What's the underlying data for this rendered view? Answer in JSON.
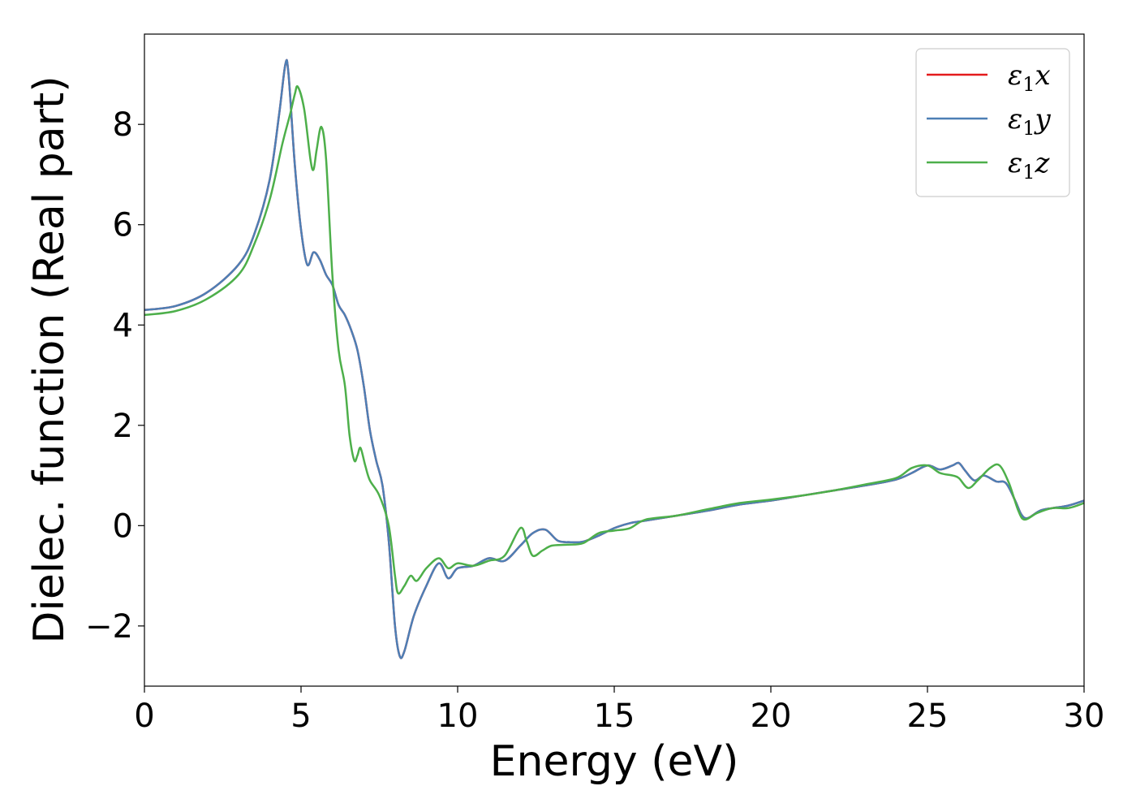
{
  "chart_data": {
    "type": "line",
    "title": "",
    "xlabel": "Energy (eV)",
    "ylabel": "Dielec. function (Real part)",
    "xlim": [
      0,
      30
    ],
    "ylim": [
      -3.2,
      9.8
    ],
    "xticks": [
      0,
      5,
      10,
      15,
      20,
      25,
      30
    ],
    "yticks": [
      -2,
      0,
      2,
      4,
      6,
      8
    ],
    "xtick_labels": [
      "0",
      "5",
      "10",
      "15",
      "20",
      "25",
      "30"
    ],
    "ytick_labels": [
      "−2",
      "0",
      "2",
      "4",
      "6",
      "8"
    ],
    "grid": false,
    "legend_position": "top-right",
    "series": [
      {
        "name": "ε1x",
        "legend_main": "ε",
        "legend_sub": "1",
        "legend_suffix": "x",
        "color": "#e41a1c",
        "points": [
          [
            0,
            4.3
          ],
          [
            1,
            4.38
          ],
          [
            2,
            4.65
          ],
          [
            3,
            5.2
          ],
          [
            3.5,
            5.8
          ],
          [
            4,
            6.9
          ],
          [
            4.3,
            8.2
          ],
          [
            4.5,
            9.2
          ],
          [
            4.6,
            9.0
          ],
          [
            4.8,
            7.2
          ],
          [
            5.0,
            5.9
          ],
          [
            5.2,
            5.2
          ],
          [
            5.4,
            5.45
          ],
          [
            5.6,
            5.3
          ],
          [
            5.8,
            5.0
          ],
          [
            6.0,
            4.8
          ],
          [
            6.2,
            4.4
          ],
          [
            6.4,
            4.2
          ],
          [
            6.6,
            3.9
          ],
          [
            6.8,
            3.5
          ],
          [
            7.0,
            2.8
          ],
          [
            7.2,
            1.9
          ],
          [
            7.4,
            1.3
          ],
          [
            7.6,
            0.8
          ],
          [
            7.8,
            -0.3
          ],
          [
            8.0,
            -2.0
          ],
          [
            8.15,
            -2.6
          ],
          [
            8.3,
            -2.5
          ],
          [
            8.6,
            -1.8
          ],
          [
            9.0,
            -1.2
          ],
          [
            9.4,
            -0.75
          ],
          [
            9.7,
            -1.05
          ],
          [
            10.0,
            -0.85
          ],
          [
            10.5,
            -0.8
          ],
          [
            11.0,
            -0.65
          ],
          [
            11.5,
            -0.7
          ],
          [
            12.0,
            -0.4
          ],
          [
            12.4,
            -0.15
          ],
          [
            12.8,
            -0.08
          ],
          [
            13.2,
            -0.3
          ],
          [
            13.6,
            -0.33
          ],
          [
            14.0,
            -0.32
          ],
          [
            14.5,
            -0.2
          ],
          [
            15.0,
            -0.05
          ],
          [
            15.5,
            0.05
          ],
          [
            16.0,
            0.1
          ],
          [
            17.0,
            0.2
          ],
          [
            18.0,
            0.3
          ],
          [
            19.0,
            0.42
          ],
          [
            20.0,
            0.5
          ],
          [
            21.0,
            0.6
          ],
          [
            22.0,
            0.7
          ],
          [
            23.0,
            0.8
          ],
          [
            24.0,
            0.92
          ],
          [
            24.5,
            1.05
          ],
          [
            25.0,
            1.2
          ],
          [
            25.4,
            1.12
          ],
          [
            25.8,
            1.2
          ],
          [
            26.0,
            1.25
          ],
          [
            26.2,
            1.1
          ],
          [
            26.5,
            0.9
          ],
          [
            26.8,
            1.0
          ],
          [
            27.2,
            0.88
          ],
          [
            27.5,
            0.85
          ],
          [
            27.8,
            0.5
          ],
          [
            28.0,
            0.22
          ],
          [
            28.2,
            0.15
          ],
          [
            28.6,
            0.3
          ],
          [
            29.0,
            0.35
          ],
          [
            29.5,
            0.4
          ],
          [
            30.0,
            0.5
          ]
        ]
      },
      {
        "name": "ε1y",
        "legend_main": "ε",
        "legend_sub": "1",
        "legend_suffix": "y",
        "color": "#4d7fb5",
        "points": [
          [
            0,
            4.3
          ],
          [
            1,
            4.38
          ],
          [
            2,
            4.65
          ],
          [
            3,
            5.2
          ],
          [
            3.5,
            5.8
          ],
          [
            4,
            6.9
          ],
          [
            4.3,
            8.2
          ],
          [
            4.5,
            9.2
          ],
          [
            4.6,
            9.0
          ],
          [
            4.8,
            7.2
          ],
          [
            5.0,
            5.9
          ],
          [
            5.2,
            5.2
          ],
          [
            5.4,
            5.45
          ],
          [
            5.6,
            5.3
          ],
          [
            5.8,
            5.0
          ],
          [
            6.0,
            4.8
          ],
          [
            6.2,
            4.4
          ],
          [
            6.4,
            4.2
          ],
          [
            6.6,
            3.9
          ],
          [
            6.8,
            3.5
          ],
          [
            7.0,
            2.8
          ],
          [
            7.2,
            1.9
          ],
          [
            7.4,
            1.3
          ],
          [
            7.6,
            0.8
          ],
          [
            7.8,
            -0.3
          ],
          [
            8.0,
            -2.0
          ],
          [
            8.15,
            -2.6
          ],
          [
            8.3,
            -2.5
          ],
          [
            8.6,
            -1.8
          ],
          [
            9.0,
            -1.2
          ],
          [
            9.4,
            -0.75
          ],
          [
            9.7,
            -1.05
          ],
          [
            10.0,
            -0.85
          ],
          [
            10.5,
            -0.8
          ],
          [
            11.0,
            -0.65
          ],
          [
            11.5,
            -0.7
          ],
          [
            12.0,
            -0.4
          ],
          [
            12.4,
            -0.15
          ],
          [
            12.8,
            -0.08
          ],
          [
            13.2,
            -0.3
          ],
          [
            13.6,
            -0.33
          ],
          [
            14.0,
            -0.32
          ],
          [
            14.5,
            -0.2
          ],
          [
            15.0,
            -0.05
          ],
          [
            15.5,
            0.05
          ],
          [
            16.0,
            0.1
          ],
          [
            17.0,
            0.2
          ],
          [
            18.0,
            0.3
          ],
          [
            19.0,
            0.42
          ],
          [
            20.0,
            0.5
          ],
          [
            21.0,
            0.6
          ],
          [
            22.0,
            0.7
          ],
          [
            23.0,
            0.8
          ],
          [
            24.0,
            0.92
          ],
          [
            24.5,
            1.05
          ],
          [
            25.0,
            1.2
          ],
          [
            25.4,
            1.12
          ],
          [
            25.8,
            1.2
          ],
          [
            26.0,
            1.25
          ],
          [
            26.2,
            1.1
          ],
          [
            26.5,
            0.9
          ],
          [
            26.8,
            1.0
          ],
          [
            27.2,
            0.88
          ],
          [
            27.5,
            0.85
          ],
          [
            27.8,
            0.5
          ],
          [
            28.0,
            0.22
          ],
          [
            28.2,
            0.15
          ],
          [
            28.6,
            0.3
          ],
          [
            29.0,
            0.35
          ],
          [
            29.5,
            0.4
          ],
          [
            30.0,
            0.5
          ]
        ]
      },
      {
        "name": "ε1z",
        "legend_main": "ε",
        "legend_sub": "1",
        "legend_suffix": "z",
        "color": "#4daf4a",
        "points": [
          [
            0,
            4.2
          ],
          [
            1,
            4.28
          ],
          [
            2,
            4.52
          ],
          [
            3,
            5.0
          ],
          [
            3.5,
            5.6
          ],
          [
            4,
            6.5
          ],
          [
            4.4,
            7.6
          ],
          [
            4.65,
            8.2
          ],
          [
            4.8,
            8.6
          ],
          [
            4.9,
            8.75
          ],
          [
            5.1,
            8.3
          ],
          [
            5.3,
            7.3
          ],
          [
            5.4,
            7.1
          ],
          [
            5.5,
            7.5
          ],
          [
            5.65,
            7.95
          ],
          [
            5.8,
            7.3
          ],
          [
            6.0,
            5.0
          ],
          [
            6.2,
            3.5
          ],
          [
            6.4,
            2.8
          ],
          [
            6.55,
            1.8
          ],
          [
            6.7,
            1.3
          ],
          [
            6.8,
            1.4
          ],
          [
            6.9,
            1.55
          ],
          [
            7.05,
            1.2
          ],
          [
            7.2,
            0.9
          ],
          [
            7.5,
            0.6
          ],
          [
            7.8,
            0.0
          ],
          [
            8.0,
            -1.0
          ],
          [
            8.1,
            -1.35
          ],
          [
            8.3,
            -1.2
          ],
          [
            8.5,
            -1.0
          ],
          [
            8.7,
            -1.1
          ],
          [
            9.0,
            -0.85
          ],
          [
            9.4,
            -0.65
          ],
          [
            9.7,
            -0.85
          ],
          [
            10.0,
            -0.75
          ],
          [
            10.5,
            -0.8
          ],
          [
            11.0,
            -0.7
          ],
          [
            11.5,
            -0.6
          ],
          [
            12.0,
            -0.05
          ],
          [
            12.2,
            -0.3
          ],
          [
            12.4,
            -0.6
          ],
          [
            12.7,
            -0.5
          ],
          [
            13.0,
            -0.4
          ],
          [
            13.5,
            -0.38
          ],
          [
            14.0,
            -0.35
          ],
          [
            14.5,
            -0.15
          ],
          [
            15.0,
            -0.1
          ],
          [
            15.5,
            -0.05
          ],
          [
            16.0,
            0.12
          ],
          [
            17.0,
            0.2
          ],
          [
            18.0,
            0.33
          ],
          [
            19.0,
            0.45
          ],
          [
            20.0,
            0.52
          ],
          [
            21.0,
            0.6
          ],
          [
            22.0,
            0.7
          ],
          [
            23.0,
            0.82
          ],
          [
            24.0,
            0.95
          ],
          [
            24.5,
            1.15
          ],
          [
            25.0,
            1.2
          ],
          [
            25.4,
            1.05
          ],
          [
            25.8,
            1.0
          ],
          [
            26.0,
            0.95
          ],
          [
            26.3,
            0.75
          ],
          [
            26.6,
            0.9
          ],
          [
            27.0,
            1.15
          ],
          [
            27.3,
            1.2
          ],
          [
            27.6,
            0.85
          ],
          [
            27.9,
            0.3
          ],
          [
            28.1,
            0.12
          ],
          [
            28.5,
            0.25
          ],
          [
            29.0,
            0.35
          ],
          [
            29.5,
            0.35
          ],
          [
            30.0,
            0.45
          ]
        ]
      }
    ]
  }
}
